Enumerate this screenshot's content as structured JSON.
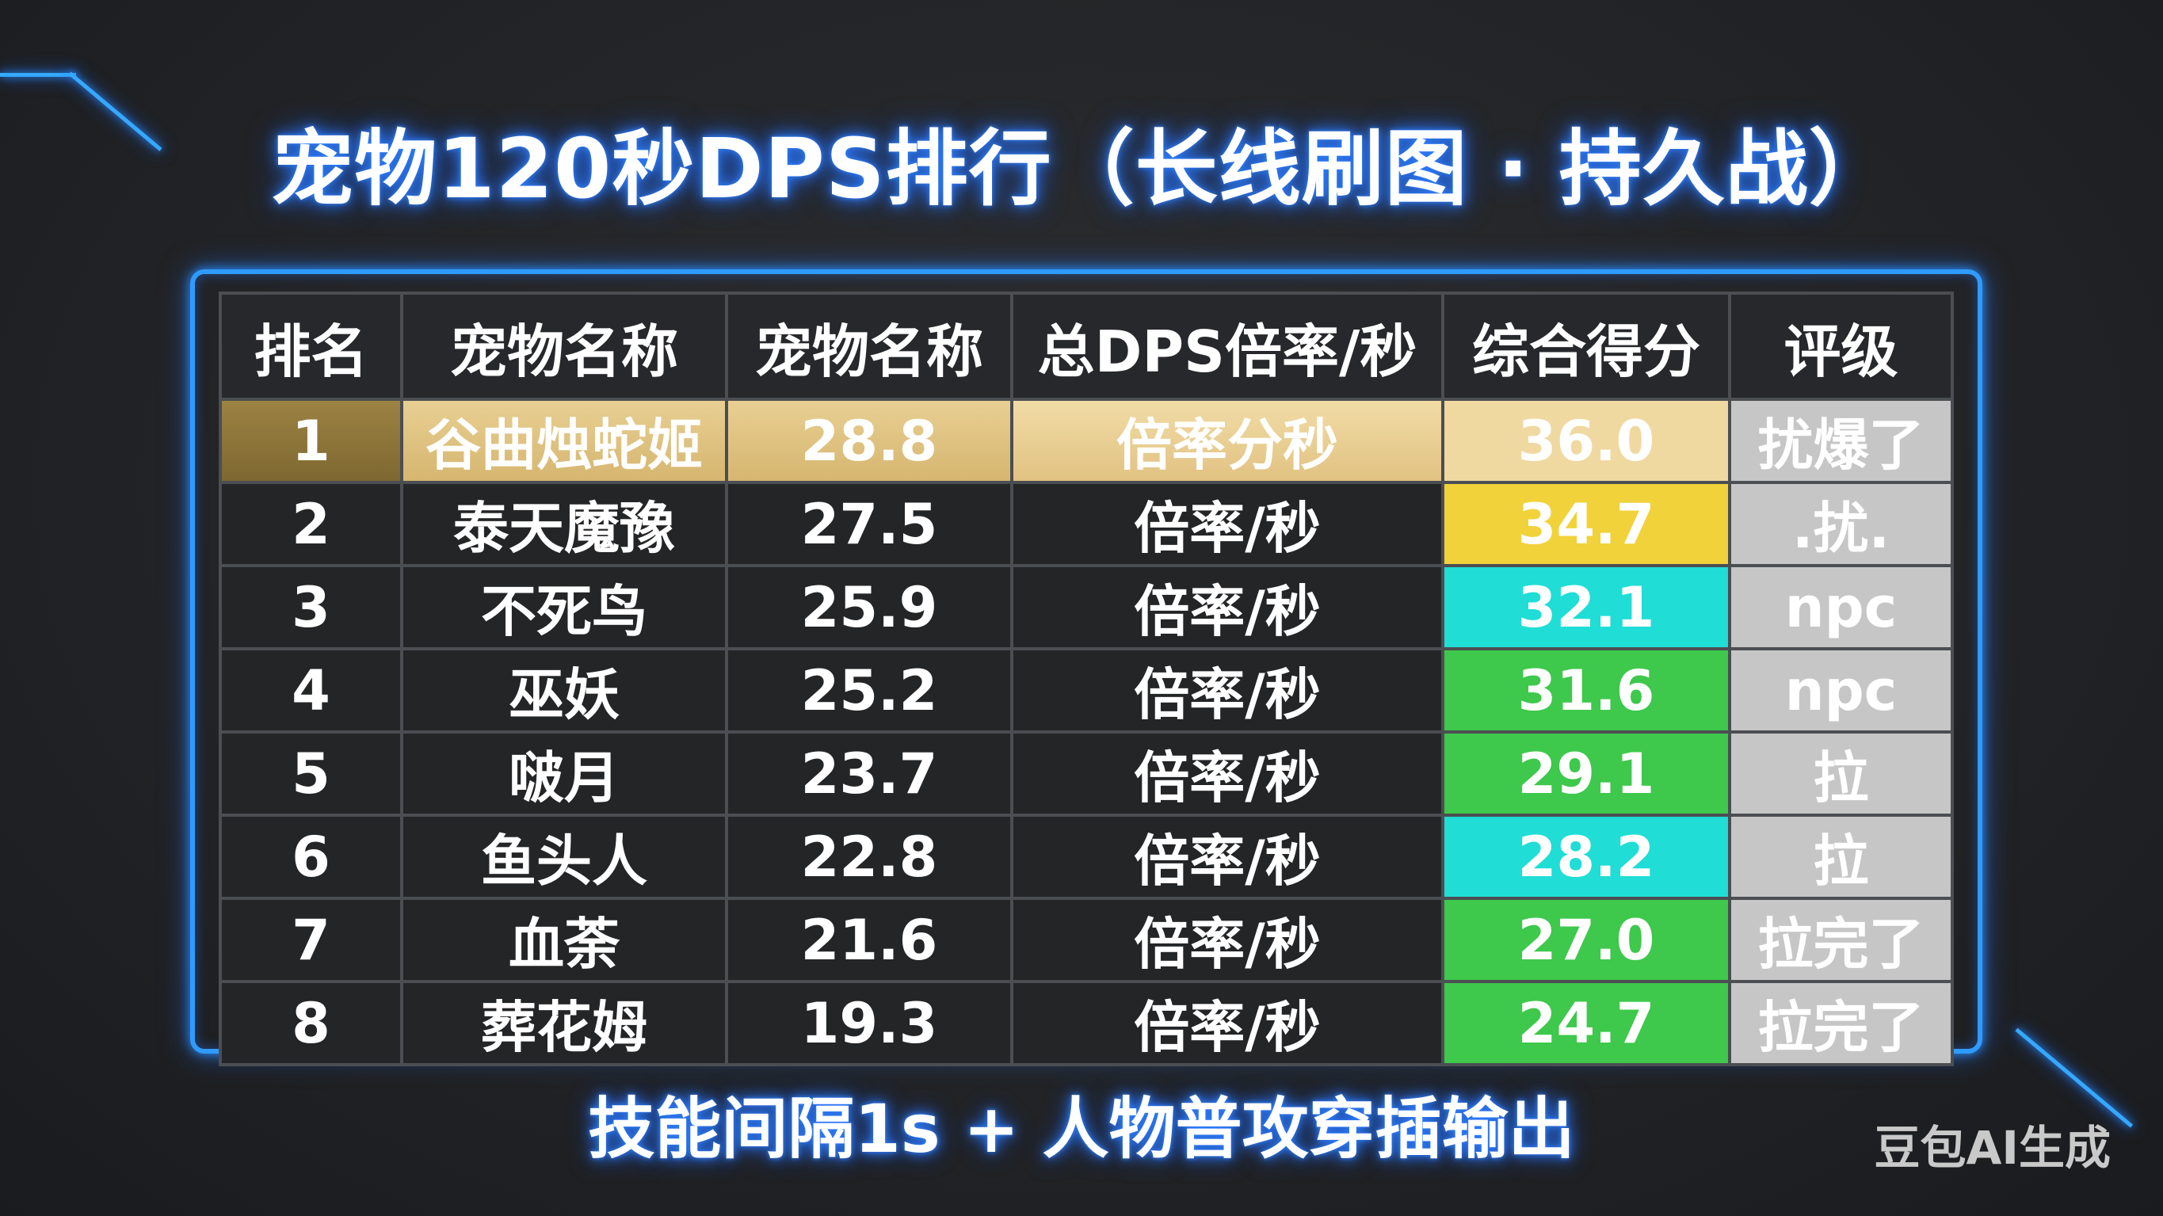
{
  "title": "宠物120秒DPS排行（长线刷图 · 持久战）",
  "table": {
    "headers": [
      "排名",
      "宠物名称",
      "宠物名称",
      "总DPS倍率/秒",
      "综合得分",
      "评级"
    ],
    "rows": [
      {
        "rank": "1",
        "name": "谷曲烛蛇姬",
        "value": "28.8",
        "unit": "倍率分秒",
        "score": "36.0",
        "grade": "扰爆了",
        "score_color": "#f0d9a1"
      },
      {
        "rank": "2",
        "name": "泰天魔豫",
        "value": "27.5",
        "unit": "倍率/秒",
        "score": "34.7",
        "grade": ".扰.",
        "score_color": "#f1d23a"
      },
      {
        "rank": "3",
        "name": "不死鸟",
        "value": "25.9",
        "unit": "倍率/秒",
        "score": "32.1",
        "grade": "npc",
        "score_color": "#20ddd6"
      },
      {
        "rank": "4",
        "name": "巫妖",
        "value": "25.2",
        "unit": "倍率/秒",
        "score": "31.6",
        "grade": "npc",
        "score_color": "#3ec84c"
      },
      {
        "rank": "5",
        "name": "啵月",
        "value": "23.7",
        "unit": "倍率/秒",
        "score": "29.1",
        "grade": "拉",
        "score_color": "#3ec84c"
      },
      {
        "rank": "6",
        "name": "鱼头人",
        "value": "22.8",
        "unit": "倍率/秒",
        "score": "28.2",
        "grade": "拉",
        "score_color": "#20ddd6"
      },
      {
        "rank": "7",
        "name": "血荼",
        "value": "21.6",
        "unit": "倍率/秒",
        "score": "27.0",
        "grade": "拉完了",
        "score_color": "#3ec84c"
      },
      {
        "rank": "8",
        "name": "葬花姆",
        "value": "19.3",
        "unit": "倍率/秒",
        "score": "24.7",
        "grade": "拉完了",
        "score_color": "#3ec84c"
      }
    ]
  },
  "footnote": "技能间隔1s + 人物普攻穿插输出",
  "watermark": "豆包AI生成"
}
